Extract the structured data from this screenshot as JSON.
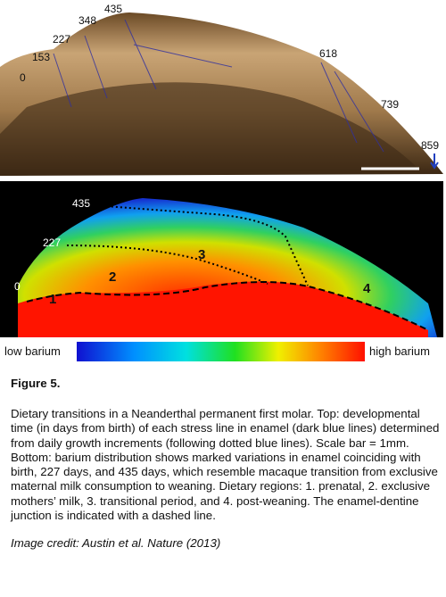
{
  "figure": {
    "top_labels": [
      "0",
      "153",
      "227",
      "348",
      "435",
      "618",
      "739",
      "859"
    ],
    "bottom_labels": [
      "435",
      "227",
      "0"
    ],
    "regions": [
      "1",
      "2",
      "3",
      "4"
    ],
    "colorbar": {
      "low": "low barium",
      "high": "high barium"
    },
    "caption_title": "Figure 5.",
    "caption_text": "Dietary transitions in a Neanderthal permanent first molar. Top: developmental time (in days from birth) of each stress line in enamel (dark blue lines) determined from daily growth increments (following dotted blue lines). Scale bar = 1mm. Bottom: barium distribution shows marked variations in enamel coinciding with birth, 227 days, and 435 days, which resemble macaque transition from exclusive maternal milk consumption to weaning. Dietary regions: 1. prenatal, 2. exclusive mothers’ milk, 3. transitional period, and 4. post-weaning. The enamel-dentine junction is indicated with a dashed line.",
    "credit": "Image credit: Austin et al. Nature (2013)"
  }
}
